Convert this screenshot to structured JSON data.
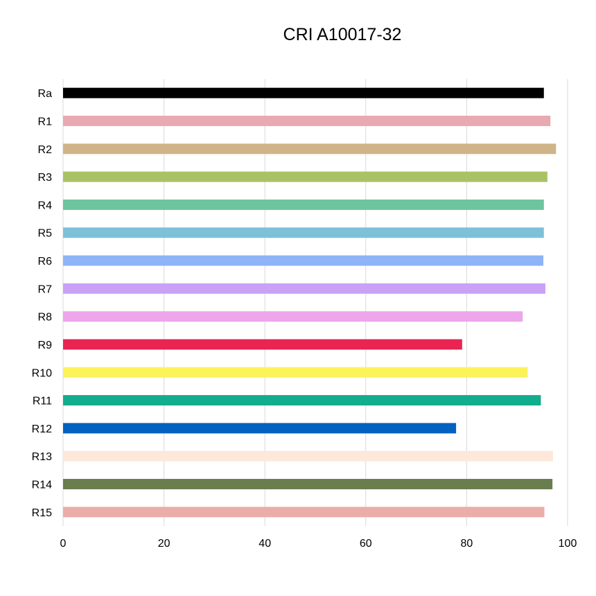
{
  "chart_data": {
    "type": "bar",
    "orientation": "horizontal",
    "title": "CRI A10017-32",
    "xlabel": "",
    "ylabel": "",
    "xlim": [
      0,
      100
    ],
    "x_ticks": [
      "0",
      "20",
      "40",
      "60",
      "80",
      "100"
    ],
    "grid": "vertical",
    "legend": "none",
    "categories": [
      "Ra",
      "R1",
      "R2",
      "R3",
      "R4",
      "R5",
      "R6",
      "R7",
      "R8",
      "R9",
      "R10",
      "R11",
      "R12",
      "R13",
      "R14",
      "R15"
    ],
    "values": [
      95.3,
      96.6,
      97.7,
      96.0,
      95.3,
      95.3,
      95.2,
      95.6,
      91.1,
      79.1,
      92.1,
      94.7,
      77.9,
      97.1,
      97.0,
      95.4
    ],
    "colors": [
      "#000000",
      "#E8A9B0",
      "#CFB487",
      "#A9C266",
      "#6EC49E",
      "#7DC1D9",
      "#8EB3F7",
      "#C9A2F7",
      "#EDA6EB",
      "#EA2350",
      "#FCF259",
      "#12AD8C",
      "#0361C2",
      "#FDE8DA",
      "#697D4E",
      "#EBADAA"
    ]
  }
}
